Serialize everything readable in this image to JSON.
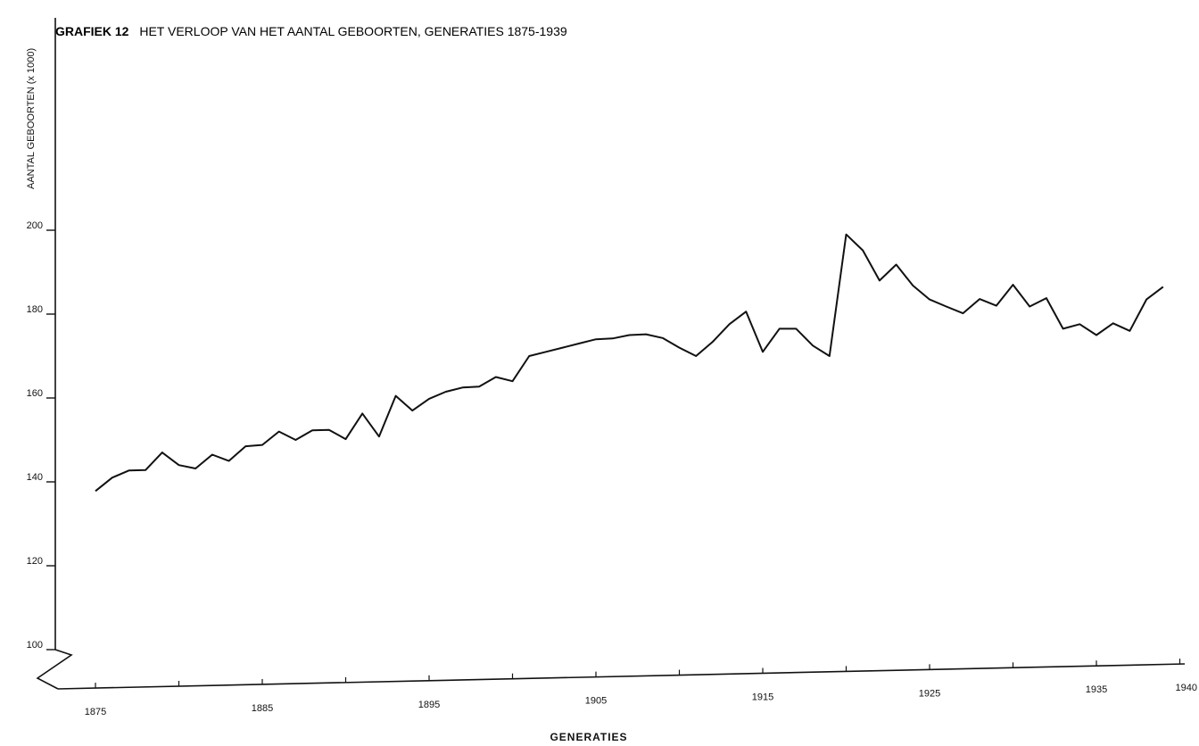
{
  "title": {
    "prefix": "GRAFIEK 12",
    "text": "HET VERLOOP VAN HET AANTAL GEBOORTEN, GENERATIES 1875-1939"
  },
  "chart_data": {
    "type": "line",
    "title": "GRAFIEK 12 HET VERLOOP VAN HET AANTAL GEBOORTEN, GENERATIES 1875-1939",
    "xlabel": "GENERATIES",
    "ylabel": "AANTAL GEBOORTEN (x 1000)",
    "xlim": [
      1873,
      1940
    ],
    "ylim": [
      100,
      200
    ],
    "x_ticks": [
      1875,
      1885,
      1895,
      1905,
      1915,
      1925,
      1935,
      1940
    ],
    "y_ticks": [
      100,
      120,
      140,
      160,
      180,
      200
    ],
    "grid": false,
    "x": [
      1875,
      1876,
      1877,
      1878,
      1879,
      1880,
      1881,
      1882,
      1883,
      1884,
      1885,
      1886,
      1887,
      1888,
      1889,
      1890,
      1891,
      1892,
      1893,
      1894,
      1895,
      1896,
      1897,
      1898,
      1899,
      1900,
      1901,
      1902,
      1903,
      1904,
      1905,
      1906,
      1907,
      1908,
      1909,
      1910,
      1911,
      1912,
      1913,
      1914,
      1915,
      1916,
      1917,
      1918,
      1919,
      1920,
      1921,
      1922,
      1923,
      1924,
      1925,
      1926,
      1927,
      1928,
      1929,
      1930,
      1931,
      1932,
      1933,
      1934,
      1935,
      1936,
      1937,
      1938,
      1939
    ],
    "series": [
      {
        "values": [
          137.8,
          141,
          142.7,
          142.8,
          147,
          144,
          143.2,
          146.5,
          145,
          148.5,
          148.8,
          152,
          150,
          152.3,
          152.4,
          150.2,
          156.3,
          150.8,
          160.5,
          157,
          159.8,
          161.5,
          162.5,
          162.7,
          165,
          164,
          170,
          171,
          172,
          173,
          174,
          174.2,
          175,
          175.2,
          174.3,
          172,
          170,
          173.4,
          177.6,
          180.6,
          171,
          176.5,
          176.5,
          172.5,
          170,
          199,
          195.2,
          188,
          191.8,
          186.8,
          183.5,
          181.8,
          180.2,
          183.6,
          182,
          187,
          181.8,
          183.8,
          176.5,
          177.6,
          175,
          177.8,
          176,
          183.5,
          186.5
        ]
      }
    ]
  }
}
